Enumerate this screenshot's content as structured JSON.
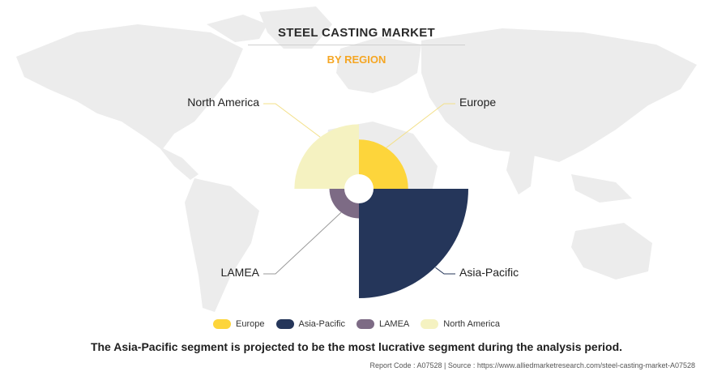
{
  "title": "STEEL CASTING MARKET",
  "subtitle": "BY REGION",
  "colors": {
    "accent": "#f5a623",
    "map": "#ececec",
    "leader": "#b5b5b5"
  },
  "chart_data": {
    "type": "pie",
    "variant": "polar-area (nightingale rose), donut hole",
    "categories": [
      "Europe",
      "Asia-Pacific",
      "LAMEA",
      "North America"
    ],
    "values": [
      0.45,
      1.0,
      0.27,
      0.59
    ],
    "value_note": "relative segment sizes (radius ratio vs. Asia-Pacific) read from rendering",
    "colors": [
      "#fdd53b",
      "#25365a",
      "#7d6b85",
      "#f5f2c1"
    ],
    "legend_position": "bottom-center"
  },
  "caption": "The Asia-Pacific segment is projected to be the most lucrative segment during the analysis period.",
  "footer": "Report Code : A07528  |  Source : https://www.alliedmarketresearch.com/steel-casting-market-A07528"
}
